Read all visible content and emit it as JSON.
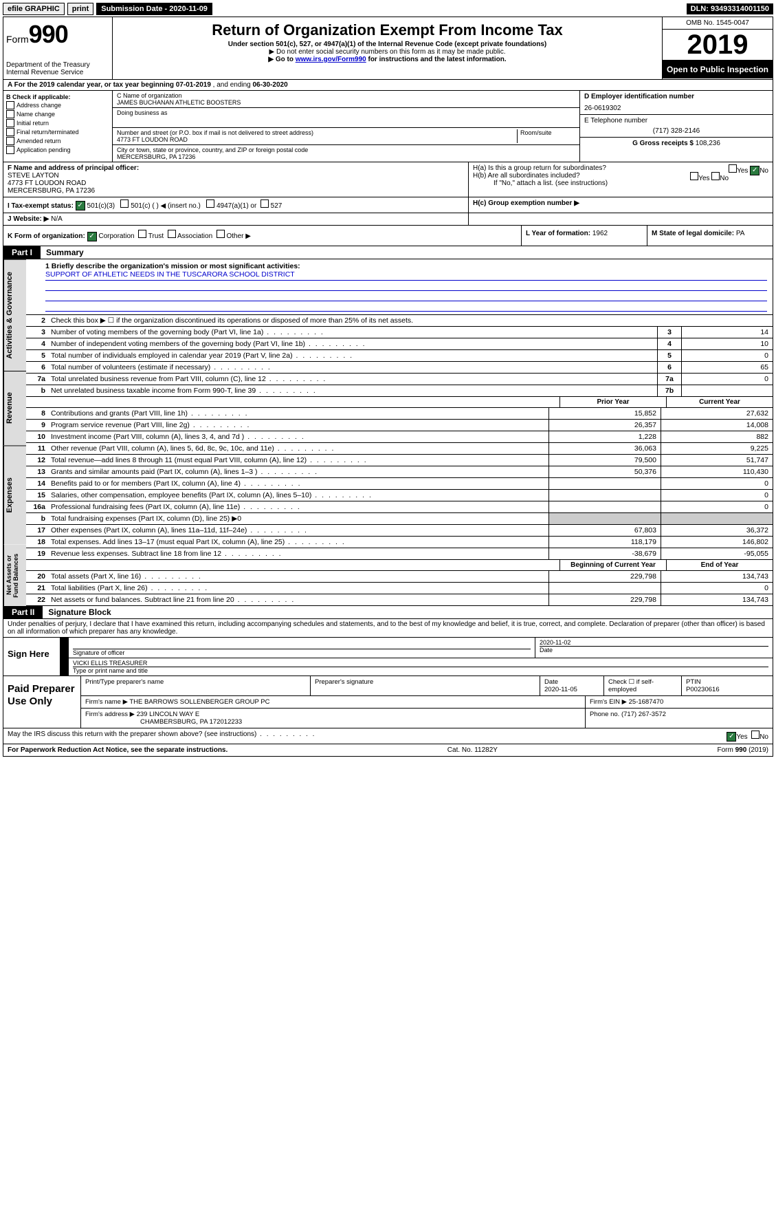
{
  "topbar": {
    "efile": "efile GRAPHIC",
    "print": "print",
    "sub_label": "Submission Date - 2020-11-09",
    "dln": "DLN: 93493314001150"
  },
  "header": {
    "form_word": "Form",
    "form_num": "990",
    "dept": "Department of the Treasury\nInternal Revenue Service",
    "title": "Return of Organization Exempt From Income Tax",
    "sub1": "Under section 501(c), 527, or 4947(a)(1) of the Internal Revenue Code (except private foundations)",
    "sub2": "▶ Do not enter social security numbers on this form as it may be made public.",
    "sub3_pre": "▶ Go to ",
    "sub3_link": "www.irs.gov/Form990",
    "sub3_post": " for instructions and the latest information.",
    "omb": "OMB No. 1545-0047",
    "year": "2019",
    "open": "Open to Public Inspection"
  },
  "row_a": {
    "label": "A For the 2019 calendar year, or tax year beginning ",
    "begin": "07-01-2019",
    "mid": " , and ending ",
    "end": "06-30-2020"
  },
  "box_b": {
    "header": "B Check if applicable:",
    "opt1": "Address change",
    "opt2": "Name change",
    "opt3": "Initial return",
    "opt4": "Final return/terminated",
    "opt5": "Amended return",
    "opt6": "Application pending"
  },
  "box_c": {
    "name_lbl": "C Name of organization",
    "name": "JAMES BUCHANAN ATHLETIC BOOSTERS",
    "dba_lbl": "Doing business as",
    "addr_lbl": "Number and street (or P.O. box if mail is not delivered to street address)",
    "addr": "4773 FT LOUDON ROAD",
    "room_lbl": "Room/suite",
    "city_lbl": "City or town, state or province, country, and ZIP or foreign postal code",
    "city": "MERCERSBURG, PA  17236"
  },
  "box_d": {
    "ein_lbl": "D Employer identification number",
    "ein": "26-0619302",
    "phone_lbl": "E Telephone number",
    "phone": "(717) 328-2146",
    "gross_lbl": "G Gross receipts $ ",
    "gross": "108,236"
  },
  "box_f": {
    "lbl": "F Name and address of principal officer:",
    "name": "STEVE LAYTON",
    "addr1": "4773 FT LOUDON ROAD",
    "addr2": "MERCERSBURG, PA  17236"
  },
  "box_h": {
    "ha": "H(a)  Is this a group return for subordinates?",
    "hb": "H(b)  Are all subordinates included?",
    "hb_note": "If \"No,\" attach a list. (see instructions)",
    "hc": "H(c)  Group exemption number ▶",
    "yes": "Yes",
    "no": "No"
  },
  "box_i": {
    "lbl": "I     Tax-exempt status:",
    "c3": "501(c)(3)",
    "c": "501(c) (  ) ◀ (insert no.)",
    "a1": "4947(a)(1) or",
    "s527": "527"
  },
  "box_j": {
    "lbl": "J    Website: ▶",
    "val": "N/A"
  },
  "box_k": {
    "lbl": "K Form of organization:",
    "corp": "Corporation",
    "trust": "Trust",
    "assoc": "Association",
    "other": "Other ▶"
  },
  "box_l": {
    "lbl": "L Year of formation: ",
    "val": "1962"
  },
  "box_m": {
    "lbl": "M State of legal domicile: ",
    "val": "PA"
  },
  "part1": {
    "header": "Part I",
    "title": "Summary",
    "line1_lbl": "1  Briefly describe the organization's mission or most significant activities:",
    "mission": "SUPPORT OF ATHLETIC NEEDS IN THE TUSCARORA SCHOOL DISTRICT",
    "line2": "Check this box ▶ ☐ if the organization discontinued its operations or disposed of more than 25% of its net assets.",
    "tabs": {
      "gov": "Activities & Governance",
      "rev": "Revenue",
      "exp": "Expenses",
      "net": "Net Assets or Fund Balances"
    },
    "rows": [
      {
        "n": "3",
        "d": "Number of voting members of the governing body (Part VI, line 1a)",
        "b": "3",
        "v": "14"
      },
      {
        "n": "4",
        "d": "Number of independent voting members of the governing body (Part VI, line 1b)",
        "b": "4",
        "v": "10"
      },
      {
        "n": "5",
        "d": "Total number of individuals employed in calendar year 2019 (Part V, line 2a)",
        "b": "5",
        "v": "0"
      },
      {
        "n": "6",
        "d": "Total number of volunteers (estimate if necessary)",
        "b": "6",
        "v": "65"
      },
      {
        "n": "7a",
        "d": "Total unrelated business revenue from Part VIII, column (C), line 12",
        "b": "7a",
        "v": "0"
      },
      {
        "n": "b",
        "d": "Net unrelated business taxable income from Form 990-T, line 39",
        "b": "7b",
        "v": ""
      }
    ],
    "hdr_prior": "Prior Year",
    "hdr_current": "Current Year",
    "rev_rows": [
      {
        "n": "8",
        "d": "Contributions and grants (Part VIII, line 1h)",
        "p": "15,852",
        "c": "27,632"
      },
      {
        "n": "9",
        "d": "Program service revenue (Part VIII, line 2g)",
        "p": "26,357",
        "c": "14,008"
      },
      {
        "n": "10",
        "d": "Investment income (Part VIII, column (A), lines 3, 4, and 7d )",
        "p": "1,228",
        "c": "882"
      },
      {
        "n": "11",
        "d": "Other revenue (Part VIII, column (A), lines 5, 6d, 8c, 9c, 10c, and 11e)",
        "p": "36,063",
        "c": "9,225"
      },
      {
        "n": "12",
        "d": "Total revenue—add lines 8 through 11 (must equal Part VIII, column (A), line 12)",
        "p": "79,500",
        "c": "51,747"
      }
    ],
    "exp_rows": [
      {
        "n": "13",
        "d": "Grants and similar amounts paid (Part IX, column (A), lines 1–3 )",
        "p": "50,376",
        "c": "110,430"
      },
      {
        "n": "14",
        "d": "Benefits paid to or for members (Part IX, column (A), line 4)",
        "p": "",
        "c": "0"
      },
      {
        "n": "15",
        "d": "Salaries, other compensation, employee benefits (Part IX, column (A), lines 5–10)",
        "p": "",
        "c": "0"
      },
      {
        "n": "16a",
        "d": "Professional fundraising fees (Part IX, column (A), line 11e)",
        "p": "",
        "c": "0"
      },
      {
        "n": "b",
        "d": "Total fundraising expenses (Part IX, column (D), line 25) ▶0",
        "p": "gray",
        "c": "gray"
      },
      {
        "n": "17",
        "d": "Other expenses (Part IX, column (A), lines 11a–11d, 11f–24e)",
        "p": "67,803",
        "c": "36,372"
      },
      {
        "n": "18",
        "d": "Total expenses. Add lines 13–17 (must equal Part IX, column (A), line 25)",
        "p": "118,179",
        "c": "146,802"
      },
      {
        "n": "19",
        "d": "Revenue less expenses. Subtract line 18 from line 12",
        "p": "-38,679",
        "c": "-95,055"
      }
    ],
    "hdr_begin": "Beginning of Current Year",
    "hdr_end": "End of Year",
    "net_rows": [
      {
        "n": "20",
        "d": "Total assets (Part X, line 16)",
        "p": "229,798",
        "c": "134,743"
      },
      {
        "n": "21",
        "d": "Total liabilities (Part X, line 26)",
        "p": "",
        "c": "0"
      },
      {
        "n": "22",
        "d": "Net assets or fund balances. Subtract line 21 from line 20",
        "p": "229,798",
        "c": "134,743"
      }
    ]
  },
  "part2": {
    "header": "Part II",
    "title": "Signature Block",
    "perjury": "Under penalties of perjury, I declare that I have examined this return, including accompanying schedules and statements, and to the best of my knowledge and belief, it is true, correct, and complete. Declaration of preparer (other than officer) is based on all information of which preparer has any knowledge.",
    "sign_here": "Sign Here",
    "sig_officer": "Signature of officer",
    "sig_date": "2020-11-02",
    "date_lbl": "Date",
    "officer_name": "VICKI ELLIS  TREASURER",
    "officer_type": "Type or print name and title",
    "paid": "Paid Preparer Use Only",
    "prep_name_lbl": "Print/Type preparer's name",
    "prep_sig_lbl": "Preparer's signature",
    "prep_date_lbl": "Date",
    "prep_date": "2020-11-05",
    "check_lbl": "Check ☐ if self-employed",
    "ptin_lbl": "PTIN",
    "ptin": "P00230616",
    "firm_name_lbl": "Firm's name    ▶ ",
    "firm_name": "THE BARROWS SOLLENBERGER GROUP PC",
    "firm_ein_lbl": "Firm's EIN ▶ ",
    "firm_ein": "25-1687470",
    "firm_addr_lbl": "Firm's address ▶ ",
    "firm_addr1": "239 LINCOLN WAY E",
    "firm_addr2": "CHAMBERSBURG, PA  172012233",
    "phone_lbl": "Phone no. ",
    "phone": "(717) 267-3572",
    "discuss": "May the IRS discuss this return with the preparer shown above? (see instructions)",
    "yes": "Yes",
    "no": "No"
  },
  "footer": {
    "pra": "For Paperwork Reduction Act Notice, see the separate instructions.",
    "cat": "Cat. No. 11282Y",
    "form": "Form 990 (2019)"
  }
}
